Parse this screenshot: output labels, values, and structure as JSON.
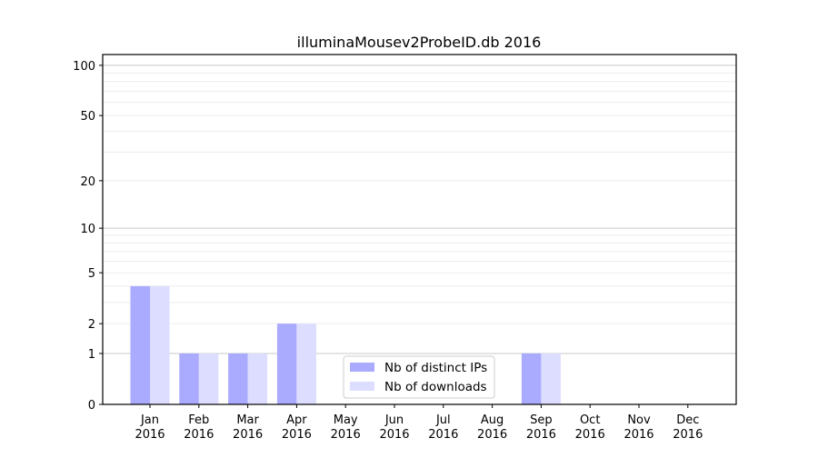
{
  "chart_data": {
    "type": "bar",
    "title": "illuminaMousev2ProbeID.db 2016",
    "xlabel": "",
    "ylabel": "",
    "categories": [
      "Jan\n2016",
      "Feb\n2016",
      "Mar\n2016",
      "Apr\n2016",
      "May\n2016",
      "Jun\n2016",
      "Jul\n2016",
      "Aug\n2016",
      "Sep\n2016",
      "Oct\n2016",
      "Nov\n2016",
      "Dec\n2016"
    ],
    "series": [
      {
        "name": "Nb of distinct IPs",
        "color": "#aaaaff",
        "values": [
          4,
          1,
          1,
          2,
          0,
          0,
          0,
          0,
          1,
          0,
          0,
          0
        ]
      },
      {
        "name": "Nb of downloads",
        "color": "#ddddff",
        "values": [
          4,
          1,
          1,
          2,
          0,
          0,
          0,
          0,
          1,
          0,
          0,
          0
        ]
      }
    ],
    "yscale": "log(1+y)",
    "ylim": [
      0,
      116
    ],
    "yticks": [
      0,
      1,
      2,
      5,
      10,
      20,
      50,
      100
    ],
    "grid": true,
    "legend": "bottom-center"
  }
}
